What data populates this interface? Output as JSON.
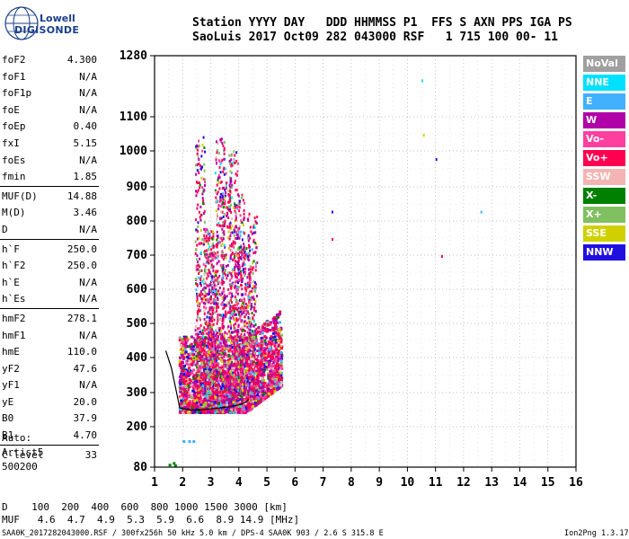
{
  "logo": {
    "line1": "Lowell",
    "line2": "DIGISONDE"
  },
  "header": {
    "line1": "Station YYYY DAY   DDD HHMMSS P1  FFS S AXN PPS IGA PS",
    "line2": "SaoLuis 2017 Oct09 282 043000 RSF   1 715 100 00- 11"
  },
  "params": [
    {
      "name": "foF2",
      "value": "4.300"
    },
    {
      "name": "foF1",
      "value": "N/A"
    },
    {
      "name": "foF1p",
      "value": "N/A"
    },
    {
      "name": "foE",
      "value": "N/A"
    },
    {
      "name": "foEp",
      "value": "0.40"
    },
    {
      "name": "fxI",
      "value": "5.15"
    },
    {
      "name": "foEs",
      "value": "N/A"
    },
    {
      "name": "fmin",
      "value": "1.85"
    },
    {
      "name": "MUF(D)",
      "value": "14.88"
    },
    {
      "name": "M(D)",
      "value": "3.46"
    },
    {
      "name": "D",
      "value": "N/A"
    },
    {
      "name": "h`F",
      "value": "250.0"
    },
    {
      "name": "h`F2",
      "value": "250.0"
    },
    {
      "name": "h`E",
      "value": "N/A"
    },
    {
      "name": "h`Es",
      "value": "N/A"
    },
    {
      "name": "hmF2",
      "value": "278.1"
    },
    {
      "name": "hmF1",
      "value": "N/A"
    },
    {
      "name": "hmE",
      "value": "110.0"
    },
    {
      "name": "yF2",
      "value": "47.6"
    },
    {
      "name": "yF1",
      "value": "N/A"
    },
    {
      "name": "yE",
      "value": "20.0"
    },
    {
      "name": "B0",
      "value": "37.9"
    },
    {
      "name": "B1",
      "value": "4.70"
    },
    {
      "name": "C-level",
      "value": "33"
    }
  ],
  "auto": {
    "line1": "Auto:",
    "line2": "Artist5",
    "line3": "500200"
  },
  "legend": [
    {
      "label": "NoVal",
      "color": "#a0a0a0"
    },
    {
      "label": "NNE",
      "color": "#00e0ff"
    },
    {
      "label": "E",
      "color": "#40b0ff"
    },
    {
      "label": "W",
      "color": "#b000a8"
    },
    {
      "label": "Vo-",
      "color": "#ff3fa0"
    },
    {
      "label": "Vo+",
      "color": "#ff0050"
    },
    {
      "label": "SSW",
      "color": "#f4b4b4"
    },
    {
      "label": "X-",
      "color": "#008000"
    },
    {
      "label": "X+",
      "color": "#80c060"
    },
    {
      "label": "SSE",
      "color": "#d0d000"
    },
    {
      "label": "NNW",
      "color": "#2010e0"
    }
  ],
  "bottom": {
    "d_row": "D    100  200  400  600  800 1000 1500 3000 [km]",
    "muf_row": "MUF   4.6  4.7  4.9  5.3  5.9  6.6  8.9 14.9 [MHz]",
    "footer": "SAA0K_2017282043000.RSF / 300fx256h 50 kHz 5.0 km / DPS-4 SAA0K 903 / 2.6 S 315.8 E",
    "version": "Ion2Png 1.3.17"
  },
  "chart_data": {
    "type": "scatter",
    "title": "",
    "xlabel": "",
    "ylabel": "",
    "xlim": [
      1,
      16
    ],
    "ylim": [
      80,
      1280
    ],
    "y_scale": "nonlinear (ionogram virtual height)",
    "x_ticks": [
      1,
      2,
      3,
      4,
      5,
      6,
      7,
      8,
      9,
      10,
      11,
      12,
      13,
      14,
      15,
      16
    ],
    "y_ticks": [
      80,
      200,
      300,
      400,
      500,
      600,
      700,
      800,
      900,
      1000,
      1100,
      1280
    ],
    "grid": true,
    "legend_position": "right",
    "echo_region": {
      "f_start_MHz": 1.85,
      "f_end_MHz": 5.5,
      "virtual_height_min_km": 240,
      "virtual_height_max_km": 1100
    },
    "trace_profile": {
      "x": [
        1.4,
        1.6,
        1.9,
        2.3,
        2.7,
        3.0,
        3.3,
        3.6,
        3.9,
        4.1,
        4.25,
        4.35
      ],
      "y": [
        420,
        370,
        255,
        248,
        250,
        252,
        255,
        258,
        262,
        266,
        272,
        280
      ]
    },
    "isolated_points": [
      {
        "x": 7.3,
        "y": 830
      },
      {
        "x": 7.3,
        "y": 750
      },
      {
        "x": 10.5,
        "y": 1210
      },
      {
        "x": 10.55,
        "y": 1050
      },
      {
        "x": 11.0,
        "y": 980
      },
      {
        "x": 11.2,
        "y": 700
      },
      {
        "x": 12.6,
        "y": 830
      }
    ]
  }
}
